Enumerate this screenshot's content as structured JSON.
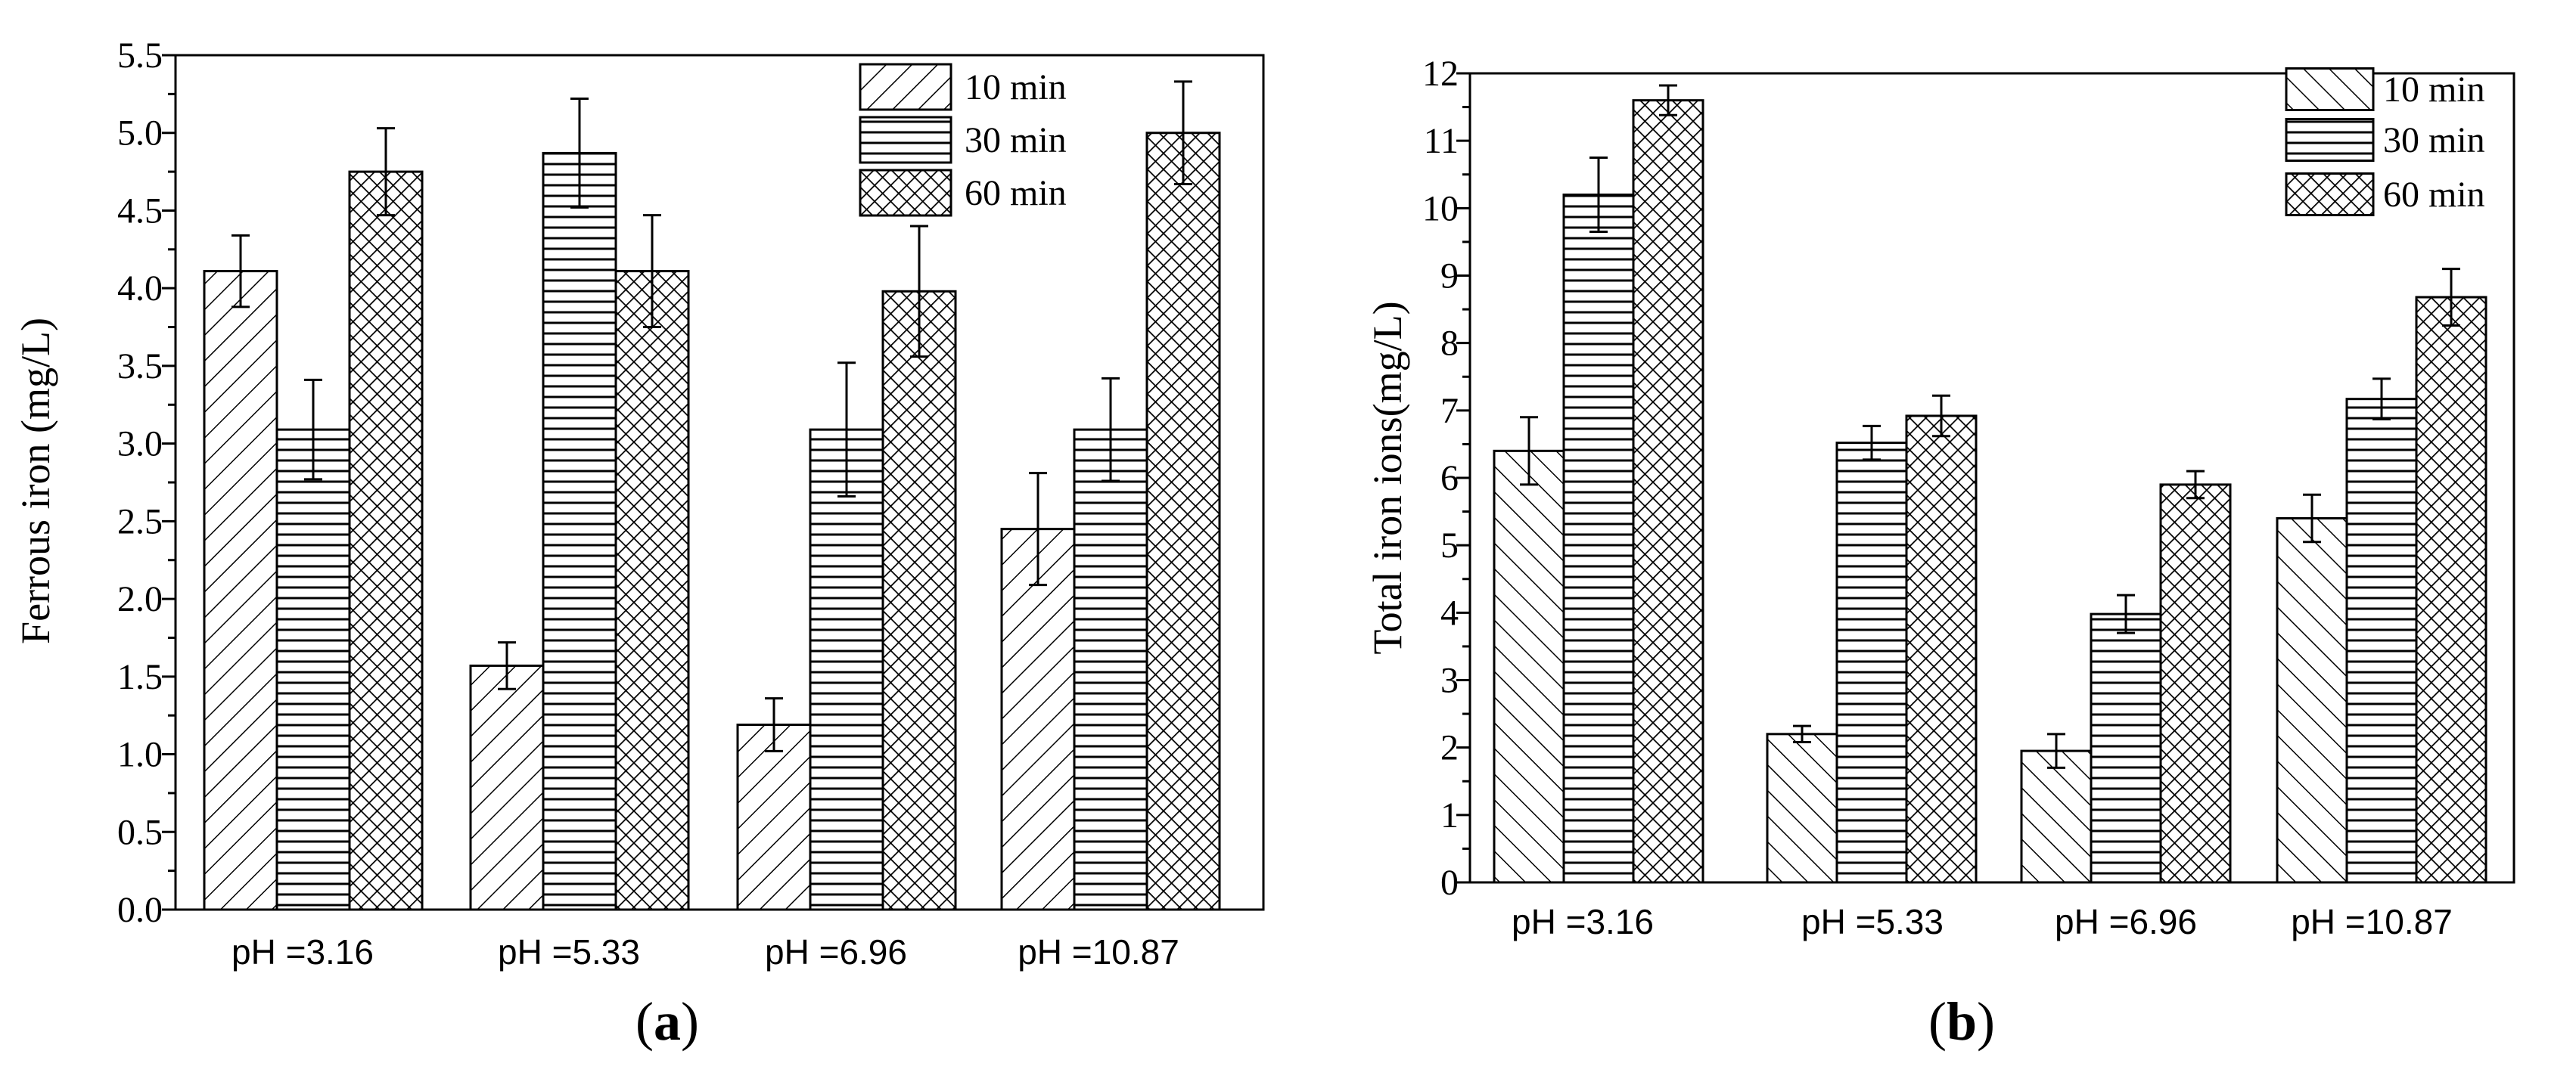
{
  "chart_data": [
    {
      "type": "bar",
      "panel_label": "a",
      "ylabel": "Ferrous iron (mg/L)",
      "xlabel": "",
      "ylim": [
        0,
        5.5
      ],
      "yticks": [
        "0.0",
        "0.5",
        "1.0",
        "1.5",
        "2.0",
        "2.5",
        "3.0",
        "3.5",
        "4.0",
        "4.5",
        "5.0",
        "5.5"
      ],
      "ytick_values": [
        0,
        0.5,
        1,
        1.5,
        2,
        2.5,
        3,
        3.5,
        4,
        4.5,
        5,
        5.5
      ],
      "categories": [
        "pH =3.16",
        "pH =5.33",
        "pH =6.96",
        "pH =10.87"
      ],
      "legend_position": "top-right",
      "series": [
        {
          "name": "10 min",
          "pattern": "diag",
          "values": [
            4.11,
            1.57,
            1.19,
            2.45
          ],
          "errors": [
            0.23,
            0.15,
            0.17,
            0.36
          ]
        },
        {
          "name": "30 min",
          "pattern": "horiz",
          "values": [
            3.09,
            4.87,
            3.09,
            3.09
          ],
          "errors": [
            0.32,
            0.35,
            0.43,
            0.33
          ]
        },
        {
          "name": "60 min",
          "pattern": "cross",
          "values": [
            4.75,
            4.11,
            3.98,
            5.0
          ],
          "errors": [
            0.28,
            0.36,
            0.42,
            0.33
          ]
        }
      ]
    },
    {
      "type": "bar",
      "panel_label": "b",
      "ylabel": "Total iron ions(mg/L)",
      "xlabel": "",
      "ylim": [
        0,
        12
      ],
      "yticks": [
        "0",
        "1",
        "2",
        "3",
        "4",
        "5",
        "6",
        "7",
        "8",
        "9",
        "10",
        "11",
        "12"
      ],
      "ytick_values": [
        0,
        1,
        2,
        3,
        4,
        5,
        6,
        7,
        8,
        9,
        10,
        11,
        12
      ],
      "categories": [
        "pH =3.16",
        "pH =5.33",
        "pH =6.96",
        "pH =10.87"
      ],
      "legend_position": "top-right",
      "series": [
        {
          "name": "10 min",
          "pattern": "diagb",
          "values": [
            6.4,
            2.2,
            1.95,
            5.4
          ],
          "errors": [
            0.5,
            0.12,
            0.25,
            0.35
          ]
        },
        {
          "name": "30 min",
          "pattern": "horiz",
          "values": [
            10.2,
            6.52,
            3.98,
            7.17
          ],
          "errors": [
            0.55,
            0.25,
            0.28,
            0.3
          ]
        },
        {
          "name": "60 min",
          "pattern": "cross",
          "values": [
            11.6,
            6.92,
            5.9,
            8.68
          ],
          "errors": [
            0.22,
            0.3,
            0.2,
            0.42
          ]
        }
      ]
    }
  ]
}
